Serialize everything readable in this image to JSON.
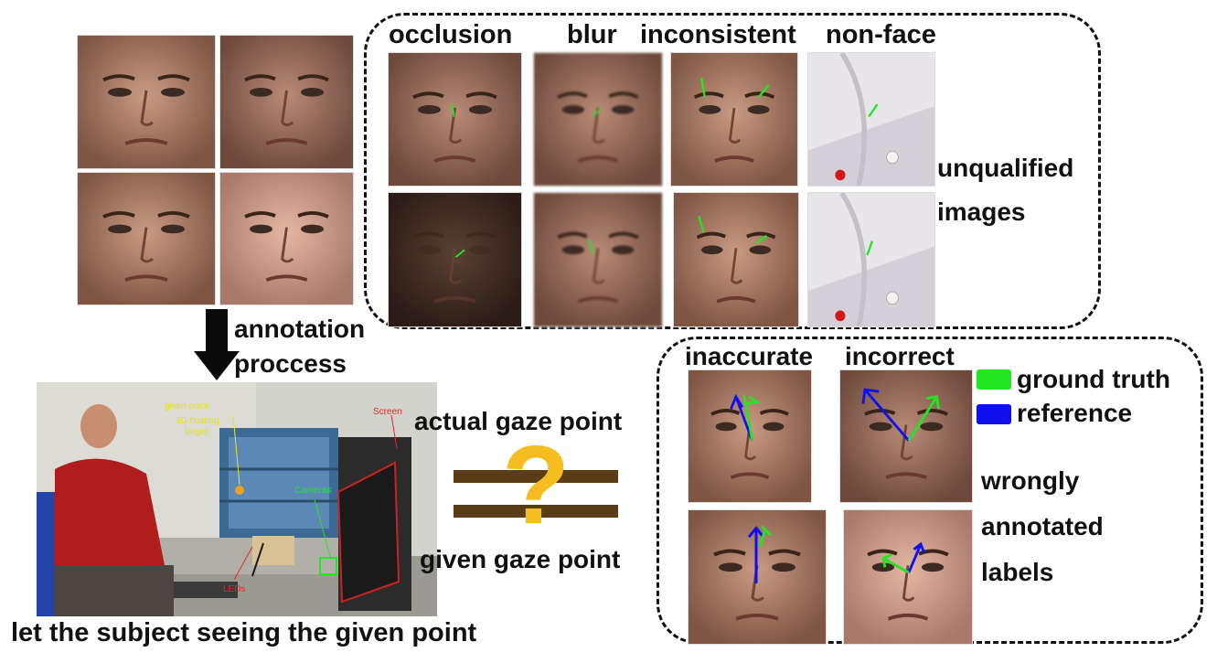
{
  "top_labels": {
    "occlusion": "occlusion",
    "blur": "blur",
    "inconsistent": "inconsistent",
    "nonface": "non-face"
  },
  "unqualified": {
    "line1": "unqualified",
    "line2": "images"
  },
  "annotation": {
    "line1": "annotation",
    "line2": "proccess"
  },
  "scene": {
    "caption": "let the subject seeing the given point",
    "given_point": "given point",
    "floating_target_1": "3D floating",
    "floating_target_2": "target",
    "cameras": "Cameras",
    "screen": "Screen",
    "leds": "LEDs"
  },
  "gaze": {
    "actual": "actual gaze point",
    "given": "given gaze point",
    "symbol": "?"
  },
  "wrong": {
    "inaccurate": "inaccurate",
    "incorrect": "incorrect",
    "line1": "wrongly",
    "line2": "annotated",
    "line3": "labels"
  },
  "legend": {
    "ground_truth": "ground truth",
    "reference": "reference",
    "gt_color": "#22e622",
    "ref_color": "#1010ee"
  },
  "colors": {
    "question": "#f5bd1f",
    "bars": "#5a3d17",
    "arrow": "#0a0a0a"
  }
}
